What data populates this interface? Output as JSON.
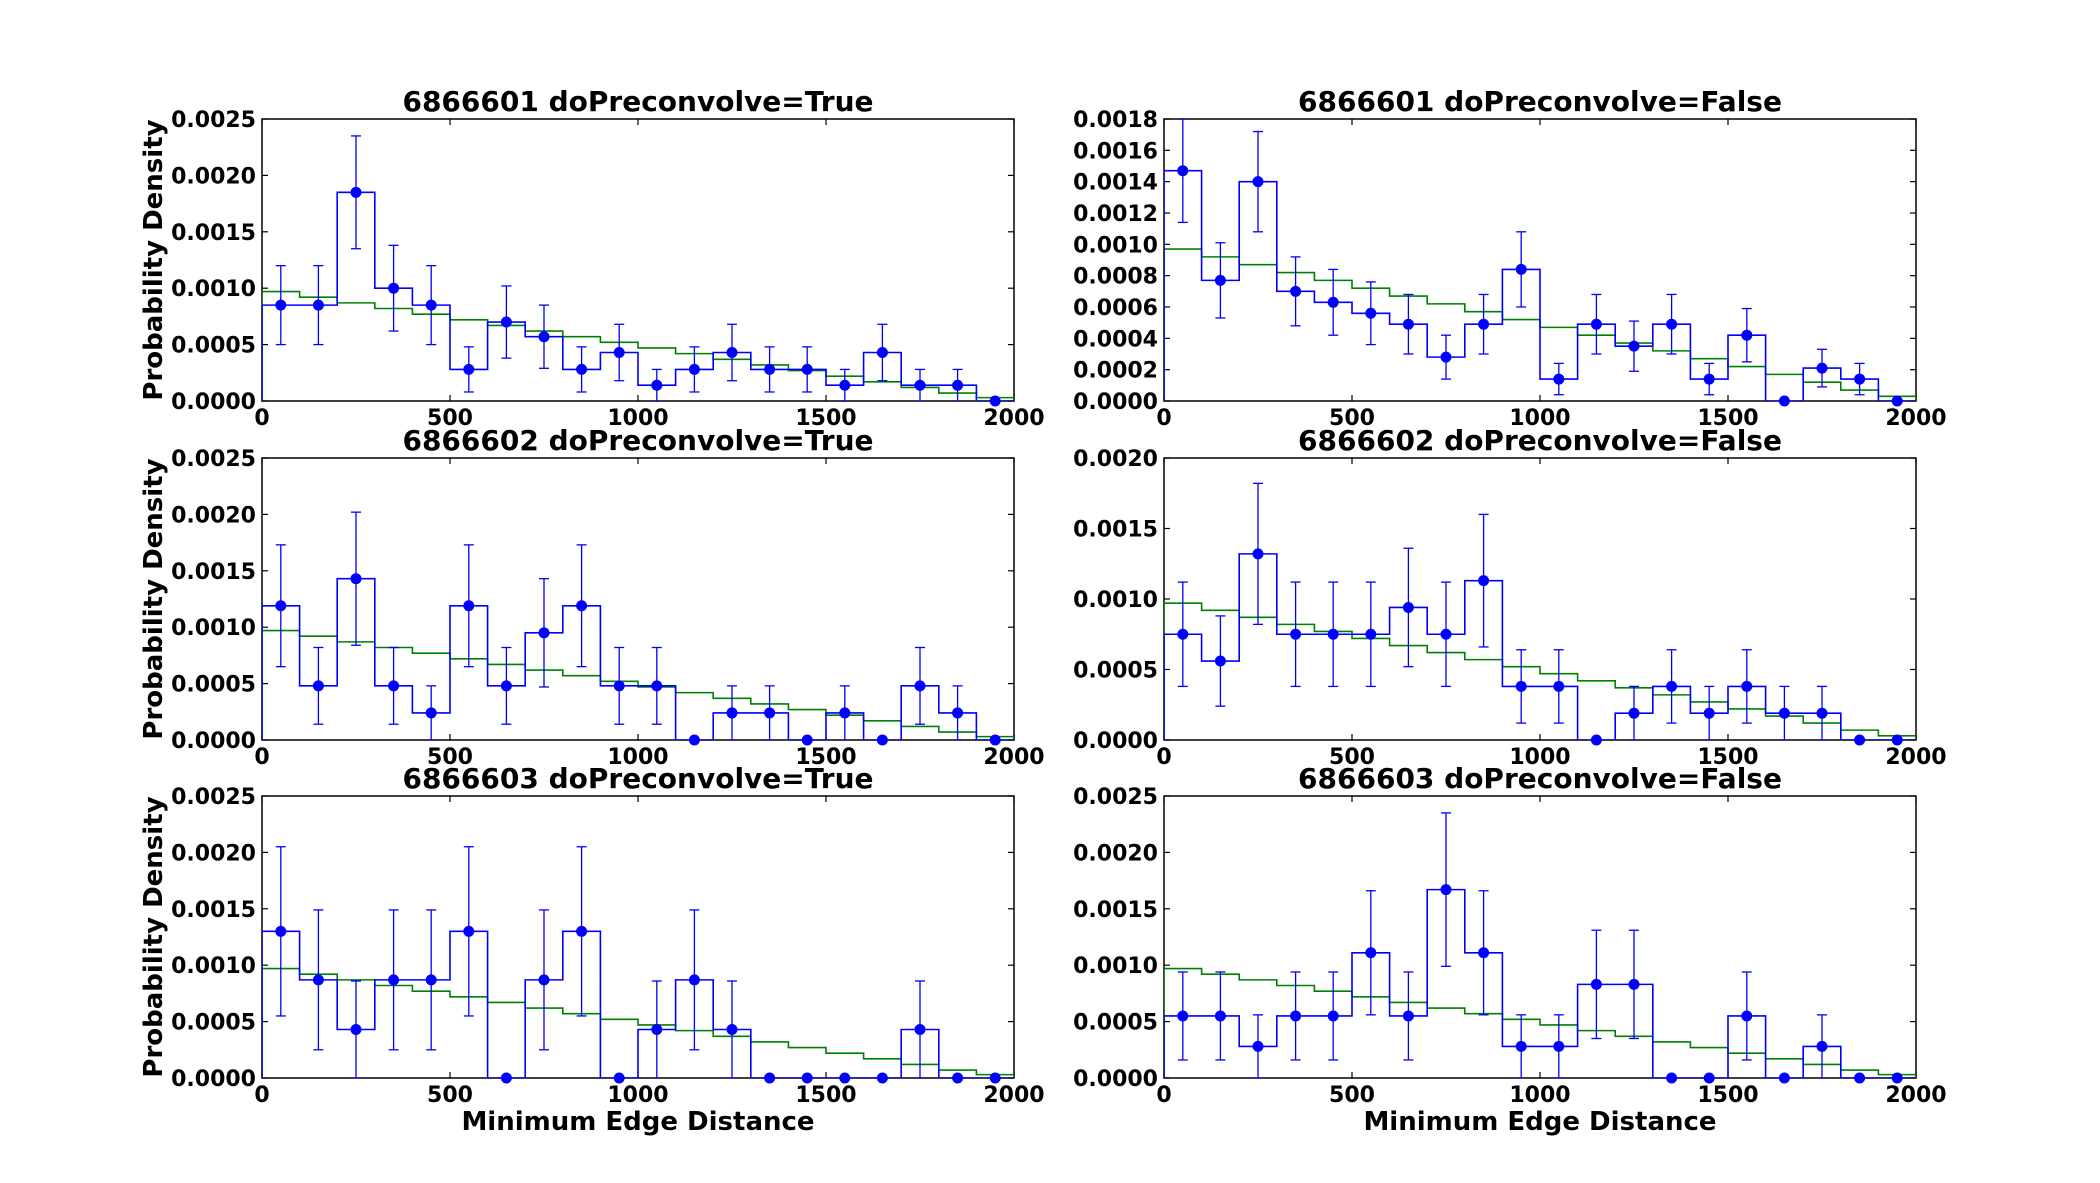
{
  "colors": {
    "observed": "#0000ff",
    "model": "#008000",
    "axes": "#000000",
    "background": "#ffffff"
  },
  "chart_data": [
    {
      "type": "histogram",
      "title": "6866601 doPreconvolve=True",
      "xlabel": "",
      "ylabel": "Probability Density",
      "xlim": [
        0,
        2000
      ],
      "ylim": [
        0,
        0.0025
      ],
      "xticks": [
        "0",
        "500",
        "1000",
        "1500",
        "2000"
      ],
      "yticks": [
        "0.0000",
        "0.0005",
        "0.0010",
        "0.0015",
        "0.0020",
        "0.0025"
      ],
      "bin_edges": [
        0,
        100,
        200,
        300,
        400,
        500,
        600,
        700,
        800,
        900,
        1000,
        1100,
        1200,
        1300,
        1400,
        1500,
        1600,
        1700,
        1800,
        1900,
        2000
      ],
      "observed": [
        0.00085,
        0.00085,
        0.00185,
        0.001,
        0.00085,
        0.00028,
        0.0007,
        0.00057,
        0.00028,
        0.00043,
        0.00014,
        0.00028,
        0.00043,
        0.00028,
        0.00028,
        0.00014,
        0.00043,
        0.00014,
        0.00014,
        0.0
      ],
      "errors": [
        0.00035,
        0.00035,
        0.0005,
        0.00038,
        0.00035,
        0.0002,
        0.00032,
        0.00028,
        0.0002,
        0.00025,
        0.00014,
        0.0002,
        0.00025,
        0.0002,
        0.0002,
        0.00014,
        0.00025,
        0.00014,
        0.00014,
        0.0
      ],
      "model": [
        0.00097,
        0.00092,
        0.00087,
        0.00082,
        0.00077,
        0.00072,
        0.00067,
        0.00062,
        0.00057,
        0.00052,
        0.00047,
        0.00042,
        0.00037,
        0.00032,
        0.00027,
        0.00022,
        0.00017,
        0.00012,
        7e-05,
        3e-05
      ]
    },
    {
      "type": "histogram",
      "title": "6866601 doPreconvolve=False",
      "xlabel": "",
      "ylabel": "",
      "xlim": [
        0,
        2000
      ],
      "ylim": [
        0,
        0.0018
      ],
      "xticks": [
        "0",
        "500",
        "1000",
        "1500",
        "2000"
      ],
      "yticks": [
        "0.0000",
        "0.0002",
        "0.0004",
        "0.0006",
        "0.0008",
        "0.0010",
        "0.0012",
        "0.0014",
        "0.0016",
        "0.0018"
      ],
      "bin_edges": [
        0,
        100,
        200,
        300,
        400,
        500,
        600,
        700,
        800,
        900,
        1000,
        1100,
        1200,
        1300,
        1400,
        1500,
        1600,
        1700,
        1800,
        1900,
        2000
      ],
      "observed": [
        0.00147,
        0.00077,
        0.0014,
        0.0007,
        0.00063,
        0.00056,
        0.00049,
        0.00028,
        0.00049,
        0.00084,
        0.00014,
        0.00049,
        0.00035,
        0.00049,
        0.00014,
        0.00042,
        0.0,
        0.00021,
        0.00014,
        0.0
      ],
      "errors": [
        0.00033,
        0.00024,
        0.00032,
        0.00022,
        0.00021,
        0.0002,
        0.00019,
        0.00014,
        0.00019,
        0.00024,
        0.0001,
        0.00019,
        0.00016,
        0.00019,
        0.0001,
        0.00017,
        0.0,
        0.00012,
        0.0001,
        0.0
      ],
      "model": [
        0.00097,
        0.00092,
        0.00087,
        0.00082,
        0.00077,
        0.00072,
        0.00067,
        0.00062,
        0.00057,
        0.00052,
        0.00047,
        0.00042,
        0.00037,
        0.00032,
        0.00027,
        0.00022,
        0.00017,
        0.00012,
        7e-05,
        3e-05
      ]
    },
    {
      "type": "histogram",
      "title": "6866602 doPreconvolve=True",
      "xlabel": "",
      "ylabel": "Probability Density",
      "xlim": [
        0,
        2000
      ],
      "ylim": [
        0,
        0.0025
      ],
      "xticks": [
        "0",
        "500",
        "1000",
        "1500",
        "2000"
      ],
      "yticks": [
        "0.0000",
        "0.0005",
        "0.0010",
        "0.0015",
        "0.0020",
        "0.0025"
      ],
      "bin_edges": [
        0,
        100,
        200,
        300,
        400,
        500,
        600,
        700,
        800,
        900,
        1000,
        1100,
        1200,
        1300,
        1400,
        1500,
        1600,
        1700,
        1800,
        1900,
        2000
      ],
      "observed": [
        0.00119,
        0.00048,
        0.00143,
        0.00048,
        0.00024,
        0.00119,
        0.00048,
        0.00095,
        0.00119,
        0.00048,
        0.00048,
        0.0,
        0.00024,
        0.00024,
        0.0,
        0.00024,
        0.0,
        0.00048,
        0.00024,
        0.0
      ],
      "errors": [
        0.00054,
        0.00034,
        0.00059,
        0.00034,
        0.00024,
        0.00054,
        0.00034,
        0.00048,
        0.00054,
        0.00034,
        0.00034,
        0.0,
        0.00024,
        0.00024,
        0.0,
        0.00024,
        0.0,
        0.00034,
        0.00024,
        0.0
      ],
      "model": [
        0.00097,
        0.00092,
        0.00087,
        0.00082,
        0.00077,
        0.00072,
        0.00067,
        0.00062,
        0.00057,
        0.00052,
        0.00047,
        0.00042,
        0.00037,
        0.00032,
        0.00027,
        0.00022,
        0.00017,
        0.00012,
        7e-05,
        3e-05
      ]
    },
    {
      "type": "histogram",
      "title": "6866602 doPreconvolve=False",
      "xlabel": "",
      "ylabel": "",
      "xlim": [
        0,
        2000
      ],
      "ylim": [
        0,
        0.002
      ],
      "xticks": [
        "0",
        "500",
        "1000",
        "1500",
        "2000"
      ],
      "yticks": [
        "0.0000",
        "0.0005",
        "0.0010",
        "0.0015",
        "0.0020"
      ],
      "bin_edges": [
        0,
        100,
        200,
        300,
        400,
        500,
        600,
        700,
        800,
        900,
        1000,
        1100,
        1200,
        1300,
        1400,
        1500,
        1600,
        1700,
        1800,
        1900,
        2000
      ],
      "observed": [
        0.00075,
        0.00056,
        0.00132,
        0.00075,
        0.00075,
        0.00075,
        0.00094,
        0.00075,
        0.00113,
        0.00038,
        0.00038,
        0.0,
        0.00019,
        0.00038,
        0.00019,
        0.00038,
        0.00019,
        0.00019,
        0.0,
        0.0
      ],
      "errors": [
        0.00037,
        0.00032,
        0.0005,
        0.00037,
        0.00037,
        0.00037,
        0.00042,
        0.00037,
        0.00047,
        0.00026,
        0.00026,
        0.0,
        0.00019,
        0.00026,
        0.00019,
        0.00026,
        0.00019,
        0.00019,
        0.0,
        0.0
      ],
      "model": [
        0.00097,
        0.00092,
        0.00087,
        0.00082,
        0.00077,
        0.00072,
        0.00067,
        0.00062,
        0.00057,
        0.00052,
        0.00047,
        0.00042,
        0.00037,
        0.00032,
        0.00027,
        0.00022,
        0.00017,
        0.00012,
        7e-05,
        3e-05
      ]
    },
    {
      "type": "histogram",
      "title": "6866603 doPreconvolve=True",
      "xlabel": "Minimum Edge Distance",
      "ylabel": "Probability Density",
      "xlim": [
        0,
        2000
      ],
      "ylim": [
        0,
        0.0025
      ],
      "xticks": [
        "0",
        "500",
        "1000",
        "1500",
        "2000"
      ],
      "yticks": [
        "0.0000",
        "0.0005",
        "0.0010",
        "0.0015",
        "0.0020",
        "0.0025"
      ],
      "bin_edges": [
        0,
        100,
        200,
        300,
        400,
        500,
        600,
        700,
        800,
        900,
        1000,
        1100,
        1200,
        1300,
        1400,
        1500,
        1600,
        1700,
        1800,
        1900,
        2000
      ],
      "observed": [
        0.0013,
        0.00087,
        0.00043,
        0.00087,
        0.00087,
        0.0013,
        0.0,
        0.00087,
        0.0013,
        0.0,
        0.00043,
        0.00087,
        0.00043,
        0.0,
        0.0,
        0.0,
        0.0,
        0.00043,
        0.0,
        0.0
      ],
      "errors": [
        0.00075,
        0.00062,
        0.00043,
        0.00062,
        0.00062,
        0.00075,
        0.0,
        0.00062,
        0.00075,
        0.0,
        0.00043,
        0.00062,
        0.00043,
        0.0,
        0.0,
        0.0,
        0.0,
        0.00043,
        0.0,
        0.0
      ],
      "model": [
        0.00097,
        0.00092,
        0.00087,
        0.00082,
        0.00077,
        0.00072,
        0.00067,
        0.00062,
        0.00057,
        0.00052,
        0.00047,
        0.00042,
        0.00037,
        0.00032,
        0.00027,
        0.00022,
        0.00017,
        0.00012,
        7e-05,
        3e-05
      ]
    },
    {
      "type": "histogram",
      "title": "6866603 doPreconvolve=False",
      "xlabel": "Minimum Edge Distance",
      "ylabel": "",
      "xlim": [
        0,
        2000
      ],
      "ylim": [
        0,
        0.0025
      ],
      "xticks": [
        "0",
        "500",
        "1000",
        "1500",
        "2000"
      ],
      "yticks": [
        "0.0000",
        "0.0005",
        "0.0010",
        "0.0015",
        "0.0020",
        "0.0025"
      ],
      "bin_edges": [
        0,
        100,
        200,
        300,
        400,
        500,
        600,
        700,
        800,
        900,
        1000,
        1100,
        1200,
        1300,
        1400,
        1500,
        1600,
        1700,
        1800,
        1900,
        2000
      ],
      "observed": [
        0.00055,
        0.00055,
        0.00028,
        0.00055,
        0.00055,
        0.00111,
        0.00055,
        0.00167,
        0.00111,
        0.00028,
        0.00028,
        0.00083,
        0.00083,
        0.0,
        0.0,
        0.00055,
        0.0,
        0.00028,
        0.0,
        0.0
      ],
      "errors": [
        0.00039,
        0.00039,
        0.00028,
        0.00039,
        0.00039,
        0.00055,
        0.00039,
        0.00068,
        0.00055,
        0.00028,
        0.00028,
        0.00048,
        0.00048,
        0.0,
        0.0,
        0.00039,
        0.0,
        0.00028,
        0.0,
        0.0
      ],
      "model": [
        0.00097,
        0.00092,
        0.00087,
        0.00082,
        0.00077,
        0.00072,
        0.00067,
        0.00062,
        0.00057,
        0.00052,
        0.00047,
        0.00042,
        0.00037,
        0.00032,
        0.00027,
        0.00022,
        0.00017,
        0.00012,
        7e-05,
        3e-05
      ]
    }
  ]
}
